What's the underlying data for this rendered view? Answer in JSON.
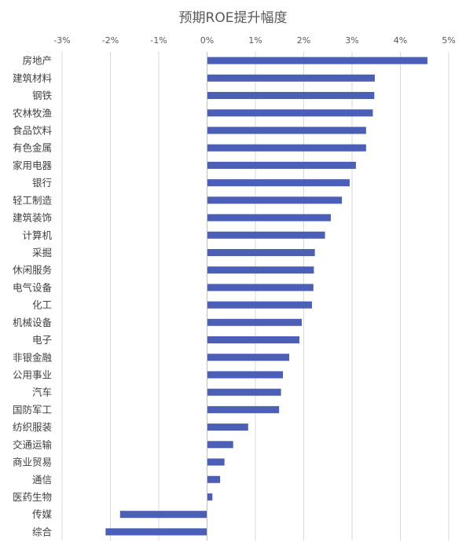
{
  "chart_data": {
    "type": "bar",
    "orientation": "horizontal",
    "title": "预期ROE提升幅度",
    "xlim": [
      -0.03,
      0.05
    ],
    "x_ticks": [
      -0.03,
      -0.02,
      -0.01,
      0,
      0.01,
      0.02,
      0.03,
      0.04,
      0.05
    ],
    "x_tick_labels": [
      "-3%",
      "-2%",
      "-1%",
      "0%",
      "1%",
      "2%",
      "3%",
      "4%",
      "5%"
    ],
    "grid": "vertical",
    "bar_color": "#4a5fb5",
    "categories": [
      "房地产",
      "建筑材料",
      "钢铁",
      "农林牧渔",
      "食品饮料",
      "有色金属",
      "家用电器",
      "银行",
      "轻工制造",
      "建筑装饰",
      "计算机",
      "采掘",
      "休闲服务",
      "电气设备",
      "化工",
      "机械设备",
      "电子",
      "非银金融",
      "公用事业",
      "汽车",
      "国防军工",
      "纺织服装",
      "交通运输",
      "商业贸易",
      "通信",
      "医药生物",
      "传媒",
      "综合"
    ],
    "values": [
      0.0456,
      0.0347,
      0.0346,
      0.0343,
      0.0329,
      0.0329,
      0.0308,
      0.0295,
      0.0279,
      0.0256,
      0.0244,
      0.0223,
      0.0221,
      0.022,
      0.0217,
      0.0196,
      0.0191,
      0.017,
      0.0157,
      0.0153,
      0.0149,
      0.0085,
      0.0054,
      0.0036,
      0.0027,
      0.0011,
      -0.018,
      -0.021
    ]
  }
}
